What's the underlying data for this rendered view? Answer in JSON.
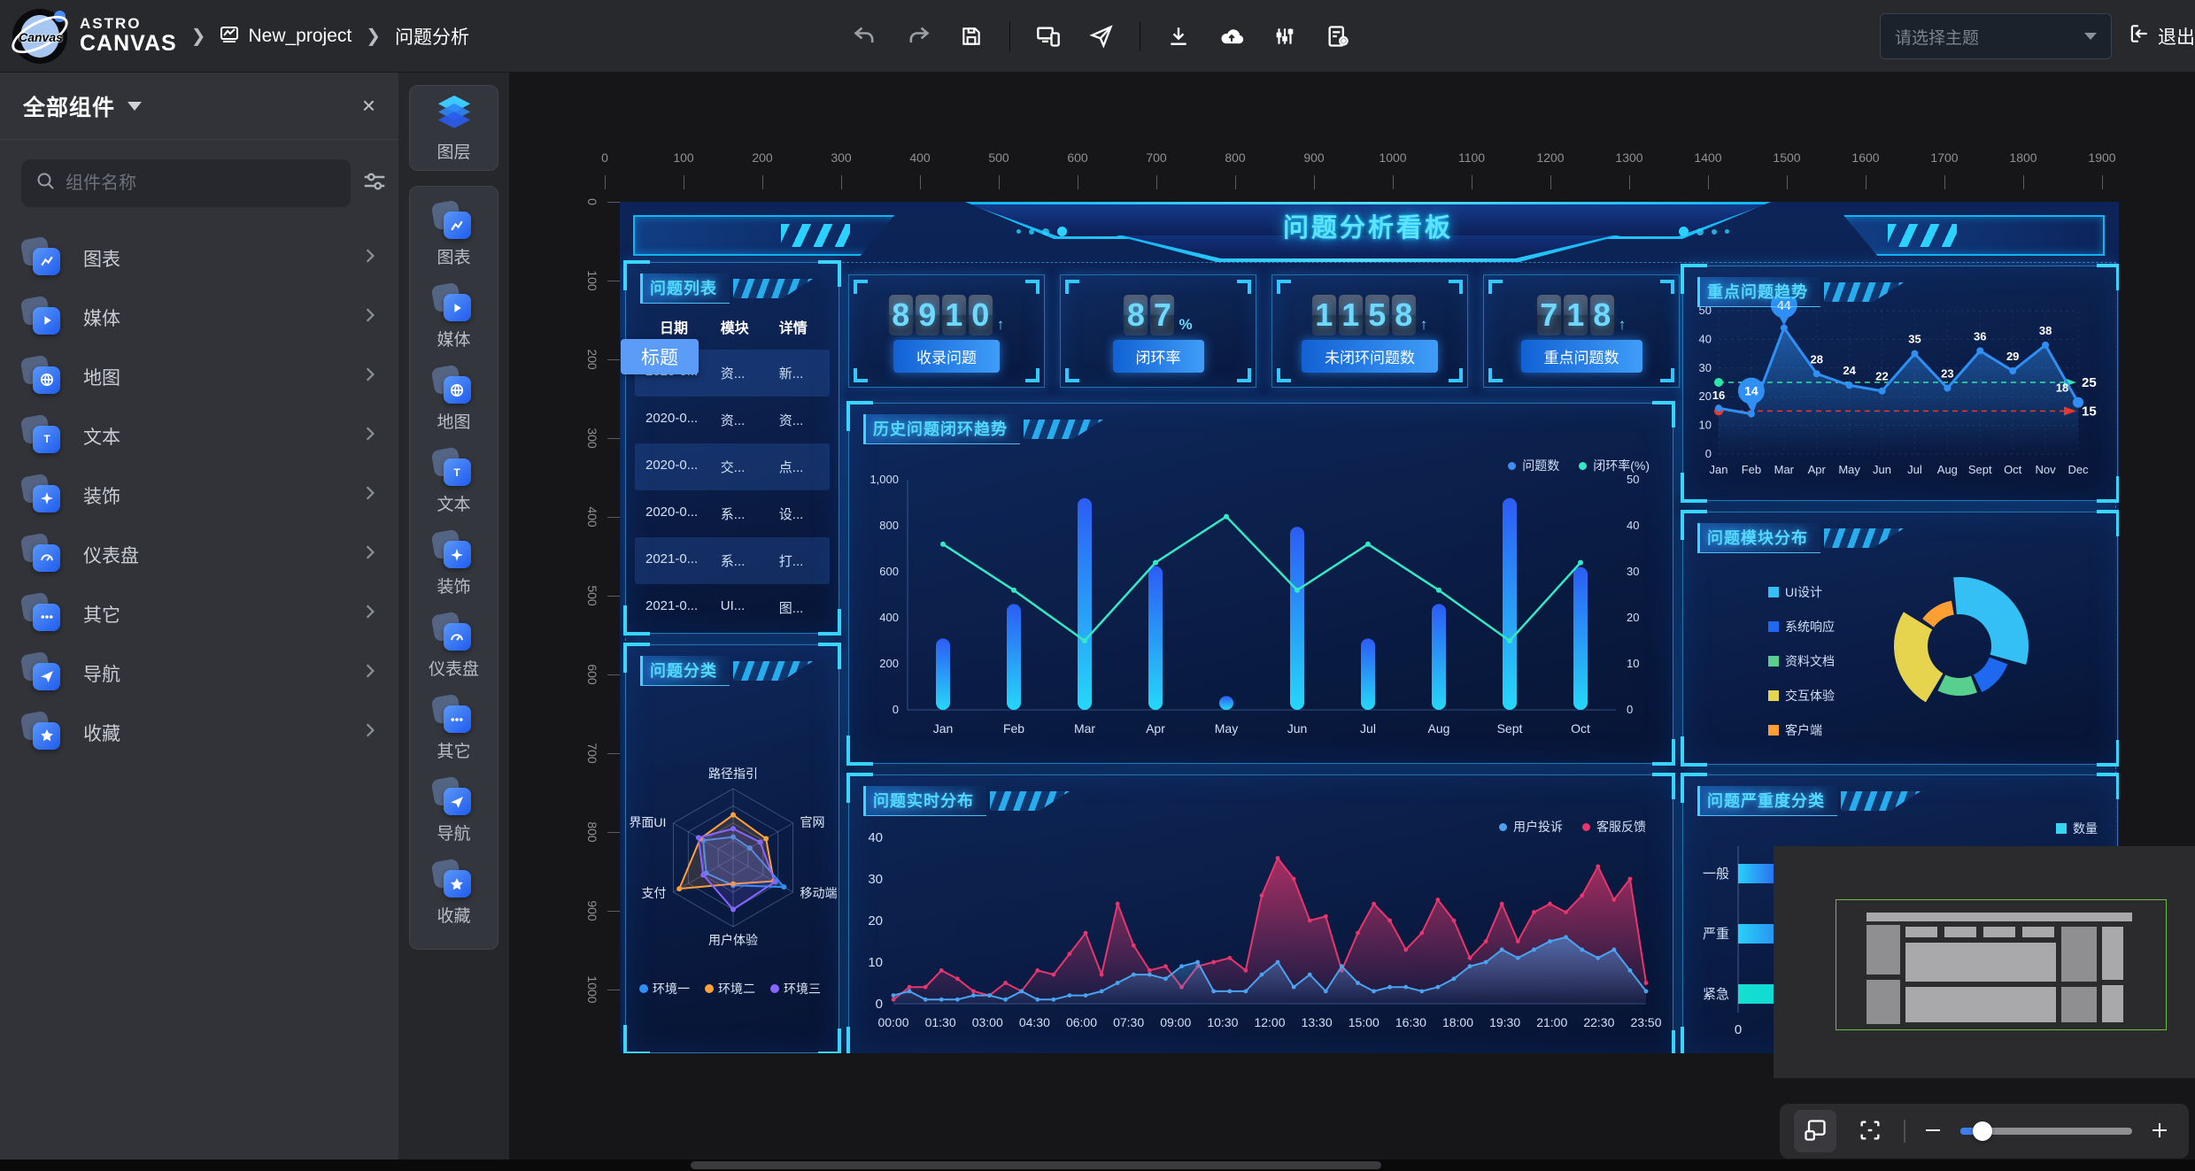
{
  "topbar": {
    "logo_text": "Canvas",
    "brand_line1": "ASTRO",
    "brand_line2": "CANVAS",
    "breadcrumb": {
      "project": "New_project",
      "page": "问题分析"
    },
    "tools": [
      "undo-icon",
      "redo-icon",
      "save-icon",
      "divider",
      "preview-devices-icon",
      "publish-icon",
      "divider",
      "download-icon",
      "cloud-upload-icon",
      "filter-sliders-icon",
      "file-settings-icon"
    ],
    "theme_select": {
      "placeholder": "请选择主题"
    },
    "exit_label": "退出"
  },
  "left_panel": {
    "title": "全部组件",
    "search_placeholder": "组件名称",
    "categories": [
      {
        "label": "图表",
        "icon": "chart-icon"
      },
      {
        "label": "媒体",
        "icon": "media-icon"
      },
      {
        "label": "地图",
        "icon": "map-icon"
      },
      {
        "label": "文本",
        "icon": "text-icon"
      },
      {
        "label": "装饰",
        "icon": "decoration-icon"
      },
      {
        "label": "仪表盘",
        "icon": "gauge-icon"
      },
      {
        "label": "其它",
        "icon": "other-icon"
      },
      {
        "label": "导航",
        "icon": "nav-icon"
      },
      {
        "label": "收藏",
        "icon": "favorite-icon"
      }
    ]
  },
  "rail": {
    "layers_label": "图层",
    "items": [
      {
        "label": "图表",
        "icon": "chart-icon"
      },
      {
        "label": "媒体",
        "icon": "media-icon"
      },
      {
        "label": "地图",
        "icon": "map-icon"
      },
      {
        "label": "文本",
        "icon": "text-icon"
      },
      {
        "label": "装饰",
        "icon": "decoration-icon"
      },
      {
        "label": "仪表盘",
        "icon": "gauge-icon"
      },
      {
        "label": "其它",
        "icon": "other-icon"
      },
      {
        "label": "导航",
        "icon": "nav-icon"
      },
      {
        "label": "收藏",
        "icon": "favorite-icon"
      }
    ]
  },
  "canvas": {
    "h_ruler": [
      "0",
      "100",
      "200",
      "300",
      "400",
      "500",
      "600",
      "700",
      "800",
      "900",
      "1000",
      "1100",
      "1200",
      "1300",
      "1400",
      "1500",
      "1600",
      "1700",
      "1800",
      "1900"
    ],
    "v_ruler": [
      "0",
      "100",
      "200",
      "300",
      "400",
      "500",
      "600",
      "700",
      "800",
      "900",
      "1000"
    ]
  },
  "dashboard": {
    "title": "问题分析看板",
    "selected_tag": "标题",
    "kpis": [
      {
        "value": "8910",
        "suffix": "↑",
        "label": "收录问题"
      },
      {
        "value": "87",
        "suffix": "%",
        "label": "闭环率"
      },
      {
        "value": "1158",
        "suffix": "↑",
        "label": "未闭环问题数"
      },
      {
        "value": "718",
        "suffix": "↑",
        "label": "重点问题数"
      }
    ],
    "table": {
      "title": "问题列表",
      "columns": [
        "日期",
        "模块",
        "详情"
      ],
      "rows": [
        [
          "2020-0...",
          "资...",
          "新..."
        ],
        [
          "2020-0...",
          "资...",
          "资..."
        ],
        [
          "2020-0...",
          "交...",
          "点..."
        ],
        [
          "2020-0...",
          "系...",
          "设..."
        ],
        [
          "2021-0...",
          "系...",
          "打..."
        ],
        [
          "2021-0...",
          "UI...",
          "图..."
        ]
      ]
    }
  },
  "chart_data": {
    "trend": {
      "type": "line",
      "title": "重点问题趋势",
      "categories": [
        "Jan",
        "Feb",
        "Mar",
        "Apr",
        "May",
        "Jun",
        "Jul",
        "Aug",
        "Sept",
        "Oct",
        "Nov",
        "Dec"
      ],
      "values": [
        16,
        14,
        44,
        28,
        24,
        22,
        35,
        23,
        36,
        29,
        38,
        18
      ],
      "ylim": [
        0,
        50
      ],
      "yticks": [
        0,
        10,
        20,
        30,
        40,
        50
      ],
      "marklines": [
        {
          "value": 25,
          "color": "#2ee6a8"
        },
        {
          "value": 15,
          "color": "#e8392e"
        }
      ],
      "balloon_points": [
        1,
        2
      ],
      "color": "#2f8ff5"
    },
    "history": {
      "type": "bar+line",
      "title": "历史问题闭环趋势",
      "legend": [
        {
          "name": "问题数",
          "color": "#3f8df5"
        },
        {
          "name": "闭环率(%)",
          "color": "#35e8c5"
        }
      ],
      "categories": [
        "Jan",
        "Feb",
        "Mar",
        "Apr",
        "May",
        "Jun",
        "Jul",
        "Aug",
        "Sept",
        "Oct"
      ],
      "bars": [
        310,
        460,
        920,
        625,
        60,
        795,
        310,
        460,
        920,
        620
      ],
      "line": [
        36,
        26,
        15,
        32,
        42,
        26,
        36,
        26,
        15,
        32
      ],
      "left_ylim": [
        0,
        1000
      ],
      "left_ticks": [
        "0",
        "200",
        "400",
        "600",
        "800",
        "1,000"
      ],
      "right_ylim": [
        0,
        50
      ],
      "right_ticks": [
        "0",
        "10",
        "20",
        "30",
        "40",
        "50"
      ],
      "bar_color_top": "#2c5cf5",
      "bar_color_bottom": "#25d8f8",
      "line_color": "#35e8c5"
    },
    "radar": {
      "type": "radar",
      "title": "问题分类",
      "axes": [
        "路径指引",
        "官网",
        "移动端",
        "用户体验",
        "支付",
        "界面UI"
      ],
      "max": 100,
      "series": [
        {
          "name": "环境一",
          "color": "#2f8ff5",
          "values": [
            30,
            28,
            85,
            40,
            45,
            50
          ]
        },
        {
          "name": "环境二",
          "color": "#ffa13a",
          "values": [
            62,
            55,
            68,
            38,
            90,
            55
          ]
        },
        {
          "name": "环境三",
          "color": "#8766ff",
          "values": [
            42,
            45,
            70,
            75,
            50,
            58
          ]
        }
      ]
    },
    "module": {
      "type": "pie-rose",
      "title": "问题模块分布",
      "slices": [
        {
          "name": "UI设计",
          "color": "#35c0f5",
          "value": 33,
          "radius": 78
        },
        {
          "name": "系统响应",
          "color": "#1f68f0",
          "value": 13,
          "radius": 58
        },
        {
          "name": "资料文档",
          "color": "#58cf8e",
          "value": 14,
          "radius": 56
        },
        {
          "name": "交互体验",
          "color": "#e6d44f",
          "value": 27,
          "radius": 74
        },
        {
          "name": "客户端",
          "color": "#ff9e33",
          "value": 13,
          "radius": 52
        }
      ],
      "inner_radius": 36
    },
    "realtime": {
      "type": "area",
      "title": "问题实时分布",
      "legend": [
        {
          "name": "用户投诉",
          "color": "#4aa3f0"
        },
        {
          "name": "客服反馈",
          "color": "#e8356d"
        }
      ],
      "x_labels": [
        "00:00",
        "01:30",
        "03:00",
        "04:30",
        "06:00",
        "07:30",
        "09:00",
        "10:30",
        "12:00",
        "13:30",
        "15:00",
        "16:30",
        "18:00",
        "19:30",
        "21:00",
        "22:30",
        "23:50"
      ],
      "ylim": [
        0,
        40
      ],
      "yticks": [
        0,
        10,
        20,
        30,
        40
      ],
      "complaints": [
        2,
        3,
        1,
        1,
        1,
        2,
        2,
        1,
        3,
        1,
        1,
        2,
        2,
        3,
        5,
        7,
        7,
        6,
        9,
        10,
        3,
        3,
        3,
        7,
        10,
        4,
        7,
        3,
        9,
        5,
        3,
        4,
        4,
        3,
        4,
        6,
        9,
        10,
        13,
        11,
        13,
        15,
        16,
        13,
        11,
        13,
        8,
        3
      ],
      "feedback": [
        1,
        4,
        4,
        8,
        6,
        3,
        2,
        5,
        3,
        8,
        7,
        12,
        17,
        7,
        24,
        14,
        8,
        9,
        4,
        9,
        10,
        11,
        8,
        26,
        35,
        30,
        20,
        21,
        8,
        17,
        24,
        20,
        13,
        17,
        25,
        20,
        11,
        15,
        24,
        15,
        22,
        24,
        22,
        26,
        33,
        25,
        30,
        5
      ]
    },
    "severity": {
      "type": "hbar",
      "title": "问题严重度分类",
      "legend_label": "数量",
      "legend_color": "#35d6f2",
      "categories": [
        "一般",
        "严重",
        "紧急"
      ],
      "values": [
        70,
        110,
        200
      ],
      "xmax": 500,
      "x_origin_label": "0",
      "colors": [
        "blue",
        "blue",
        "teal"
      ]
    }
  },
  "zoom_controls": {
    "tools": [
      "minimap-toggle-icon",
      "fit-screen-icon",
      "zoom-out-icon",
      "zoom-in-icon"
    ],
    "zoom_slider_percent": 8
  },
  "colors": {
    "accent": "#29b6f6",
    "panel_border": "#3ad6ff",
    "dashboard_bg": "#0a1d4a"
  }
}
